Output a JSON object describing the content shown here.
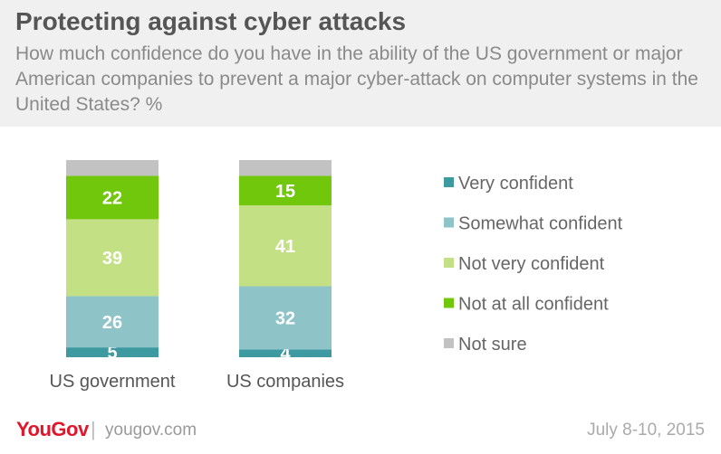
{
  "footer": {
    "logo": "YouGov",
    "separator": "|",
    "site": "yougov.com",
    "date": "July 8-10, 2015"
  },
  "chart_data": {
    "type": "stacked-bar",
    "title": "Protecting against cyber attacks",
    "subtitle": "How much confidence do you have in the ability of the US government or major American companies to prevent a major cyber-attack on computer systems in the United States? %",
    "categories": [
      "US government",
      "US companies"
    ],
    "series": [
      {
        "name": "Very confident",
        "values": [
          5,
          4
        ],
        "color": "#3c9aa0",
        "show_labels": true
      },
      {
        "name": "Somewhat confident",
        "values": [
          26,
          32
        ],
        "color": "#8ec3c8",
        "show_labels": true
      },
      {
        "name": "Not very confident",
        "values": [
          39,
          41
        ],
        "color": "#c4e084",
        "show_labels": true
      },
      {
        "name": "Not at all confident",
        "values": [
          22,
          15
        ],
        "color": "#70c70c",
        "show_labels": true
      },
      {
        "name": "Not sure",
        "values": [
          8,
          8
        ],
        "color": "#c2c2c2",
        "show_labels": false
      }
    ],
    "ylim": [
      0,
      100
    ],
    "grid": false,
    "legend_position": "right"
  }
}
